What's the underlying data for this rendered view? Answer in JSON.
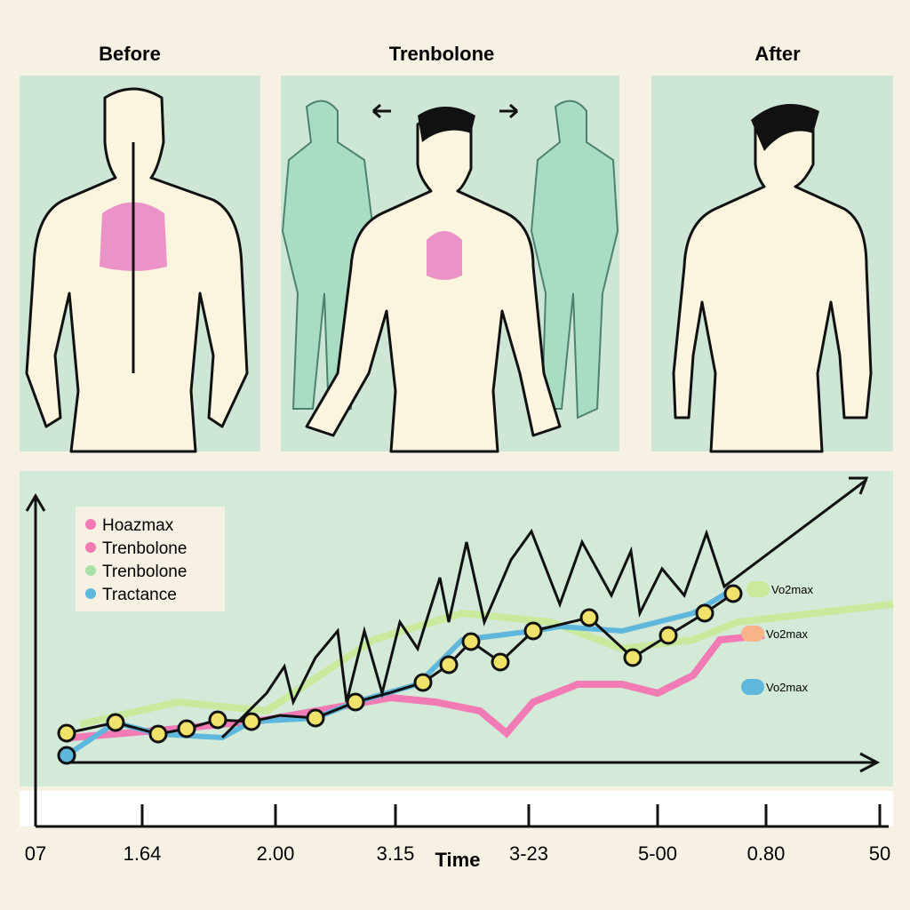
{
  "panels": [
    {
      "title": "Before"
    },
    {
      "title": "Trenbolone"
    },
    {
      "title": "After"
    }
  ],
  "legend": [
    "Hoazmax",
    "Trenbolone",
    "Trenbolone",
    "Tractance"
  ],
  "line_labels": [
    "Vo2max",
    "Vo2max",
    "Vo2max"
  ],
  "x_axis": {
    "label": "Time",
    "ticks": [
      "07",
      "1.64",
      "2.00",
      "3.15",
      "3-23",
      "5-00",
      "0.80",
      "50"
    ]
  }
}
